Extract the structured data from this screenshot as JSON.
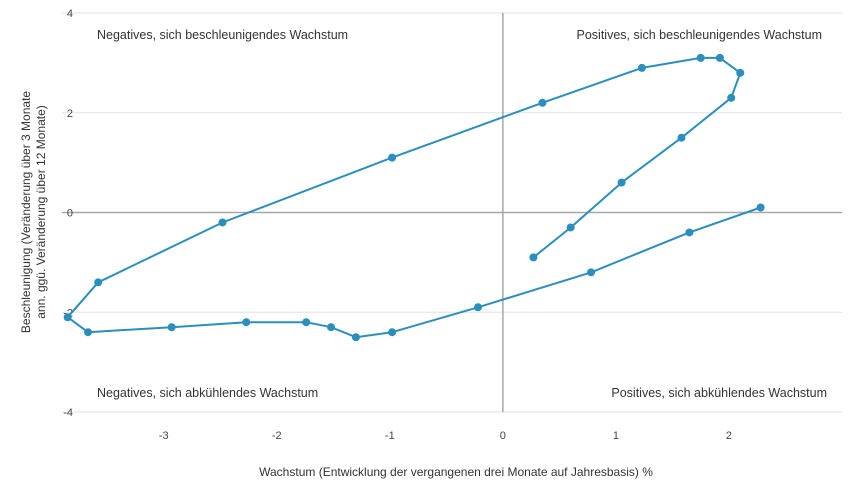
{
  "chart_data": {
    "type": "scatter",
    "connected": true,
    "xlabel": "Wachstum (Entwicklung der vergangenen drei Monate auf Jahresbasis) %",
    "ylabel_lines": [
      "Beschleunigung (Veränderung über 3 Monate",
      "ann. ggü. Veränderung über 12 Monate)"
    ],
    "xlim": [
      -3.9,
      3.0
    ],
    "ylim": [
      -4,
      4
    ],
    "x_ticks": [
      -3,
      -2,
      -1,
      0,
      1,
      2
    ],
    "x_tick_labels": [
      "-3",
      "-2",
      "-1",
      "0",
      "1",
      "2"
    ],
    "y_ticks": [
      -4,
      -2,
      0,
      2,
      4
    ],
    "y_tick_labels": [
      "-4",
      "-2",
      "0",
      "2",
      "4"
    ],
    "grid": "horizontal",
    "quadrant_labels": {
      "top_left": "Negatives, sich beschleunigendes Wachstum",
      "top_right": "Positives, sich beschleunigendes Wachstum",
      "bottom_left": "Negatives, sich abkühlendes Wachstum",
      "bottom_right": "Positives, sich abkühlendes Wachstum"
    },
    "series": [
      {
        "color": "#2b8fbd",
        "points": [
          [
            0.27,
            -0.9
          ],
          [
            0.6,
            -0.3
          ],
          [
            1.05,
            0.6
          ],
          [
            1.58,
            1.5
          ],
          [
            2.02,
            2.3
          ],
          [
            2.1,
            2.8
          ],
          [
            1.92,
            3.1
          ],
          [
            1.75,
            3.1
          ],
          [
            1.23,
            2.9
          ],
          [
            0.35,
            2.2
          ],
          [
            -0.98,
            1.1
          ],
          [
            -2.48,
            -0.2
          ],
          [
            -3.58,
            -1.4
          ],
          [
            -3.85,
            -2.1
          ],
          [
            -3.67,
            -2.4
          ],
          [
            -2.93,
            -2.3
          ],
          [
            -2.27,
            -2.2
          ],
          [
            -1.74,
            -2.2
          ],
          [
            -1.52,
            -2.3
          ],
          [
            -1.3,
            -2.5
          ],
          [
            -0.98,
            -2.4
          ],
          [
            -0.22,
            -1.9
          ],
          [
            0.78,
            -1.2
          ],
          [
            1.65,
            -0.4
          ],
          [
            2.28,
            0.1
          ]
        ]
      }
    ]
  }
}
